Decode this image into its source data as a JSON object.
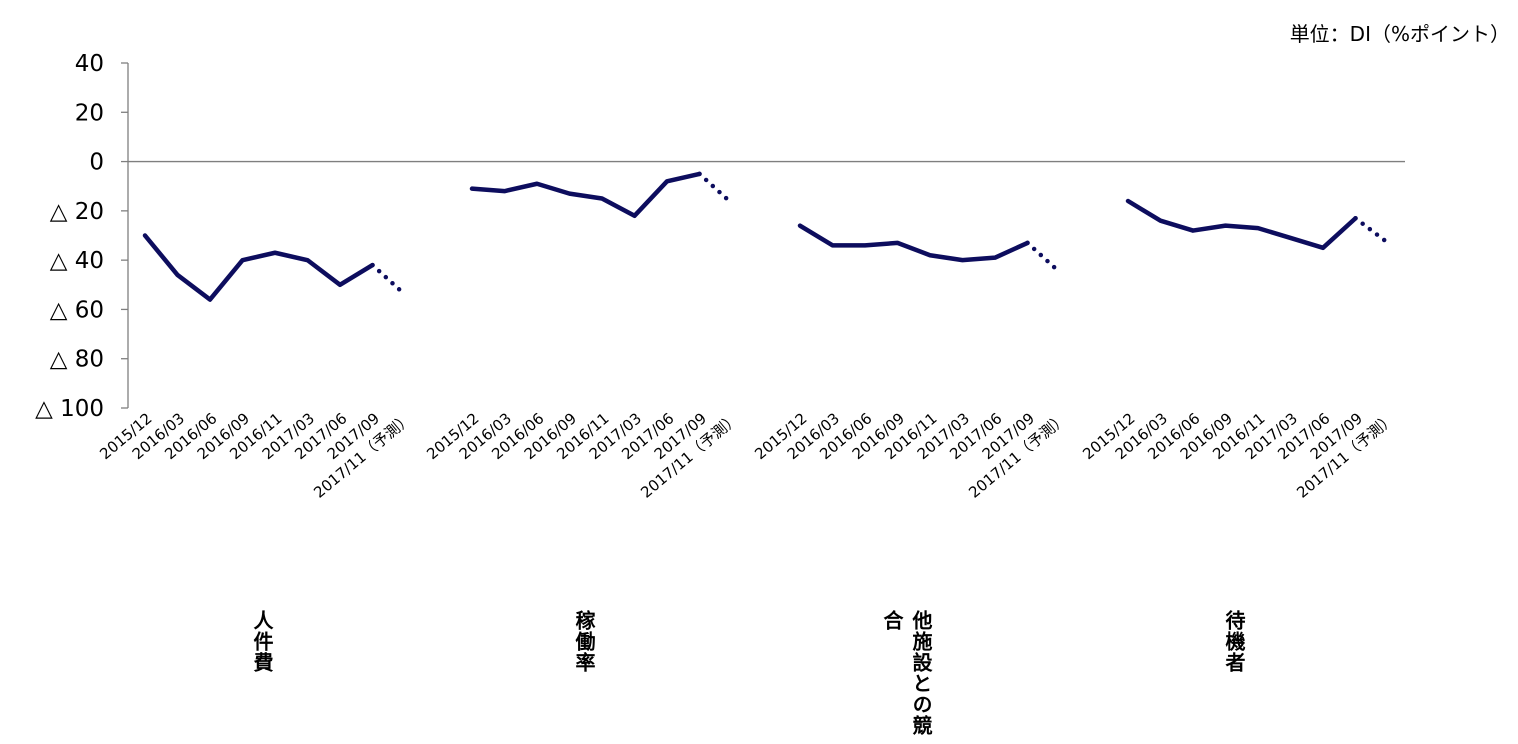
{
  "unit_label": "単位：DI（%ポイント）",
  "colors": {
    "line": "#0d0d5e",
    "axis": "#7f7f7f"
  },
  "chart_data": {
    "type": "line",
    "title": "",
    "xlabel": "",
    "ylabel": "",
    "ylim": [
      -100,
      40
    ],
    "y_ticks": [
      40,
      20,
      0,
      -20,
      -40,
      -60,
      -80,
      -100
    ],
    "y_tick_labels": [
      "40",
      "20",
      "0",
      "△ 20",
      "△ 40",
      "△ 60",
      "△ 80",
      "△ 100"
    ],
    "grid": false,
    "legend": "none",
    "categories": [
      "2015/12",
      "2016/03",
      "2016/06",
      "2016/09",
      "2016/11",
      "2017/03",
      "2017/06",
      "2017/09",
      "2017/11（予測）"
    ],
    "series": [
      {
        "name": "人件費",
        "values": [
          -30,
          -46,
          -56,
          -40,
          -37,
          -40,
          -50,
          -42,
          -54
        ]
      },
      {
        "name": "稼働率",
        "values": [
          -11,
          -12,
          -9,
          -13,
          -15,
          -22,
          -8,
          -5,
          -17
        ]
      },
      {
        "name": "他施設との競合",
        "values": [
          -26,
          -34,
          -34,
          -33,
          -38,
          -40,
          -39,
          -33,
          -45
        ]
      },
      {
        "name": "待機者",
        "values": [
          -16,
          -24,
          -28,
          -26,
          -27,
          -31,
          -35,
          -23,
          -33
        ]
      }
    ],
    "forecast_index": 8
  }
}
